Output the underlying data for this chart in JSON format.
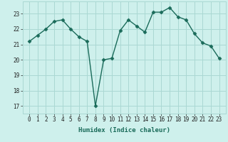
{
  "x": [
    0,
    1,
    2,
    3,
    4,
    5,
    6,
    7,
    8,
    9,
    10,
    11,
    12,
    13,
    14,
    15,
    16,
    17,
    18,
    19,
    20,
    21,
    22,
    23
  ],
  "y": [
    21.2,
    21.6,
    22.0,
    22.5,
    22.6,
    22.0,
    21.5,
    21.2,
    17.0,
    20.0,
    20.1,
    21.9,
    22.6,
    22.2,
    21.8,
    23.1,
    23.1,
    23.4,
    22.8,
    22.6,
    21.7,
    21.1,
    20.9,
    20.1
  ],
  "line_color": "#1a6b5a",
  "marker": "D",
  "markersize": 2.5,
  "linewidth": 1.0,
  "bg_color": "#cef0ec",
  "grid_color": "#aad8d3",
  "xlabel": "Humidex (Indice chaleur)",
  "ylim": [
    16.5,
    23.8
  ],
  "yticks": [
    17,
    18,
    19,
    20,
    21,
    22,
    23
  ],
  "xticks": [
    0,
    1,
    2,
    3,
    4,
    5,
    6,
    7,
    8,
    9,
    10,
    11,
    12,
    13,
    14,
    15,
    16,
    17,
    18,
    19,
    20,
    21,
    22,
    23
  ],
  "tick_fontsize": 5.5,
  "xlabel_fontsize": 6.5
}
